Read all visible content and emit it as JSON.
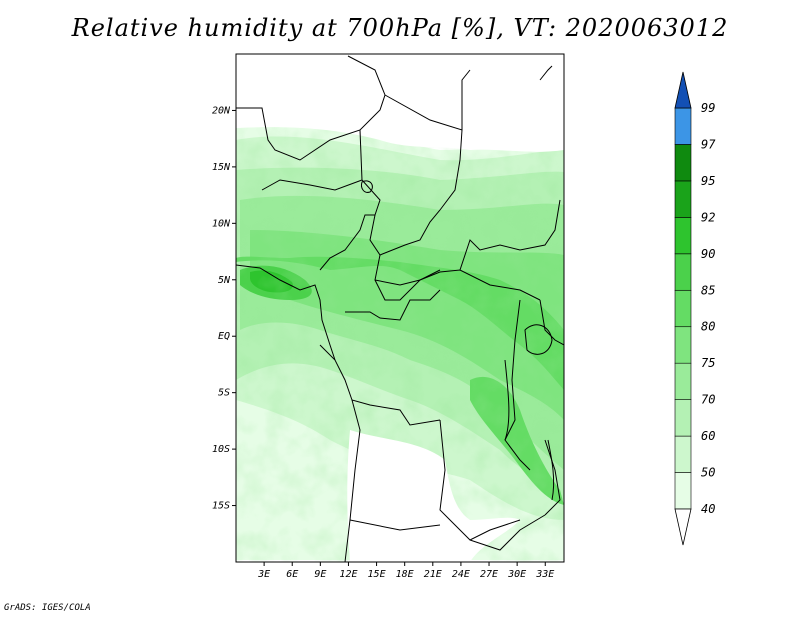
{
  "title": "Relative humidity at 700hPa [%], VT: 2020063012",
  "footer": "GrADS: IGES/COLA",
  "map": {
    "lon_range": [
      0,
      35
    ],
    "lat_range": [
      -20,
      25
    ],
    "lat_ticks": [
      "20N",
      "15N",
      "10N",
      "5N",
      "EQ",
      "5S",
      "10S",
      "15S"
    ],
    "lon_ticks": [
      "3E",
      "6E",
      "9E",
      "12E",
      "15E",
      "18E",
      "21E",
      "24E",
      "27E",
      "30E",
      "33E"
    ]
  },
  "colorbar": {
    "levels": [
      "40",
      "50",
      "60",
      "70",
      "75",
      "80",
      "85",
      "90",
      "92",
      "95",
      "97",
      "99"
    ],
    "colors": [
      "#ffffff",
      "#e6fde6",
      "#cdf7cd",
      "#b4f1b4",
      "#9aeb9a",
      "#7fe47f",
      "#64dc64",
      "#4bd14b",
      "#2ec42e",
      "#1aa31a",
      "#0f8a0f",
      "#3c95e6",
      "#1c6fd6",
      "#1350b4"
    ]
  }
}
